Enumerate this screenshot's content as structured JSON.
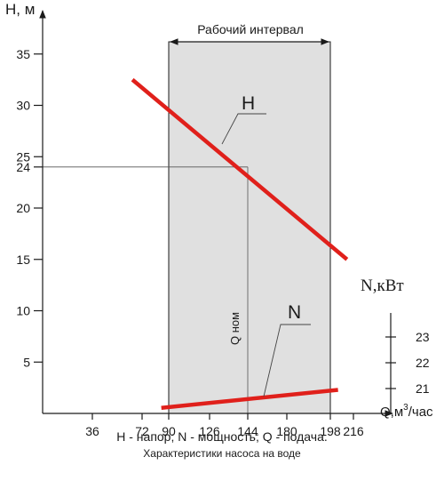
{
  "chart_data": {
    "type": "line",
    "x_axis": {
      "label": "Q,м³/час",
      "label_main": "Q,м",
      "label_sup": "3",
      "label_tail": "/час",
      "ticks": [
        36,
        72,
        90,
        126,
        144,
        180,
        198,
        216
      ],
      "range": [
        0,
        232
      ]
    },
    "y_axis_left": {
      "label": "H, м",
      "ticks": [
        5,
        10,
        15,
        20,
        24,
        25,
        30,
        35
      ],
      "range": [
        0,
        38
      ]
    },
    "y_axis_right": {
      "label": "N,кВт",
      "ticks": [
        21,
        22,
        23
      ],
      "range": [
        19.5,
        24
      ]
    },
    "series": [
      {
        "name": "H",
        "axis": "left",
        "color": "#e0201b",
        "points": [
          [
            65,
            32.5
          ],
          [
            211,
            15
          ]
        ]
      },
      {
        "name": "N",
        "axis": "right",
        "color": "#e0201b",
        "points": [
          [
            85,
            20.25
          ],
          [
            204,
            20.95
          ]
        ]
      }
    ],
    "working_interval": {
      "label": "Рабочий интервал",
      "x_from": 90,
      "x_to": 198,
      "fill": "#e0e0e0"
    },
    "nominal_point": {
      "x": 144,
      "y": 24,
      "label": "Q ном"
    },
    "legend_text": "H - напор; N - мощность; Q - подача.",
    "caption": "Характеристики насоса на воде",
    "grid": false
  }
}
